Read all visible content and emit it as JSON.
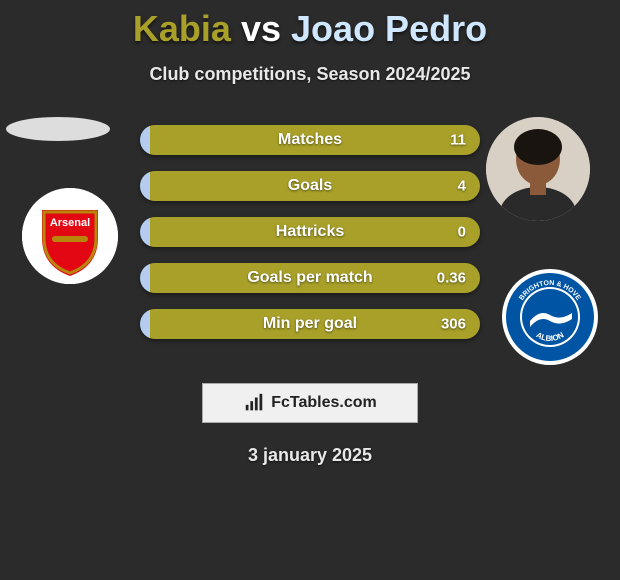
{
  "title": {
    "player1": "Kabia",
    "vs": "vs",
    "player2": "Joao Pedro",
    "player1_color": "#a8a029",
    "vs_color": "#ffffff",
    "player2_color": "#d0e8ff"
  },
  "subtitle": "Club competitions, Season 2024/2025",
  "background_color": "#2b2b2b",
  "bars": {
    "left_color": "#b4cdef",
    "right_color": "#a8a029",
    "rows": [
      {
        "label": "Matches",
        "left_val": "",
        "right_val": "11",
        "left_pct": 3,
        "right_pct": 97
      },
      {
        "label": "Goals",
        "left_val": "",
        "right_val": "4",
        "left_pct": 3,
        "right_pct": 97
      },
      {
        "label": "Hattricks",
        "left_val": "",
        "right_val": "0",
        "left_pct": 3,
        "right_pct": 97
      },
      {
        "label": "Goals per match",
        "left_val": "",
        "right_val": "0.36",
        "left_pct": 3,
        "right_pct": 97
      },
      {
        "label": "Min per goal",
        "left_val": "",
        "right_val": "306",
        "left_pct": 3,
        "right_pct": 97
      }
    ]
  },
  "club_left": {
    "name": "arsenal",
    "bg": "#ffffff",
    "primary": "#e30613",
    "accent": "#b8860b"
  },
  "club_right": {
    "name": "brighton",
    "bg": "#ffffff",
    "primary": "#0054a4",
    "text1": "BRIGHTON & HOVE",
    "text2": "ALBION"
  },
  "site_logo": {
    "text": "FcTables.com",
    "icon_color": "#222"
  },
  "date": "3 january 2025"
}
